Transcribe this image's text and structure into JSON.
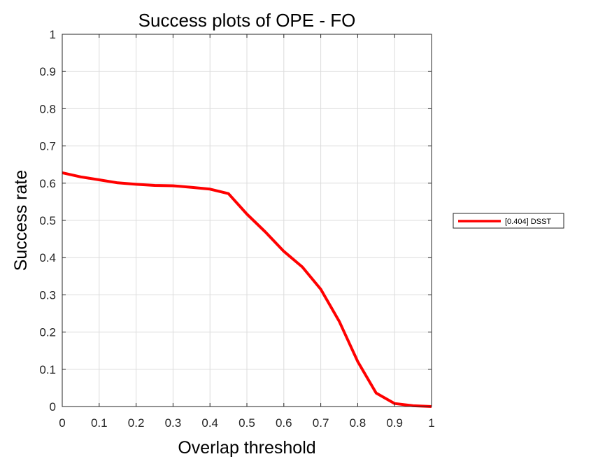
{
  "chart_data": {
    "type": "line",
    "title": "Success plots of OPE - FO",
    "xlabel": "Overlap threshold",
    "ylabel": "Success rate",
    "xlim": [
      0,
      1
    ],
    "ylim": [
      0,
      1
    ],
    "xticks": [
      "0",
      "0.1",
      "0.2",
      "0.3",
      "0.4",
      "0.5",
      "0.6",
      "0.7",
      "0.8",
      "0.9",
      "1"
    ],
    "yticks": [
      "0",
      "0.1",
      "0.2",
      "0.3",
      "0.4",
      "0.5",
      "0.6",
      "0.7",
      "0.8",
      "0.9",
      "1"
    ],
    "grid": true,
    "legend_position": "outside-right",
    "series": [
      {
        "name": "[0.404] DSST",
        "color": "#ff0000",
        "x": [
          0,
          0.05,
          0.1,
          0.15,
          0.2,
          0.25,
          0.3,
          0.35,
          0.4,
          0.45,
          0.5,
          0.55,
          0.6,
          0.65,
          0.7,
          0.75,
          0.8,
          0.85,
          0.9,
          0.95,
          1
        ],
        "y": [
          0.628,
          0.617,
          0.609,
          0.601,
          0.597,
          0.594,
          0.593,
          0.589,
          0.584,
          0.572,
          0.517,
          0.469,
          0.417,
          0.375,
          0.315,
          0.229,
          0.121,
          0.036,
          0.008,
          0.002,
          0.0
        ]
      }
    ]
  }
}
